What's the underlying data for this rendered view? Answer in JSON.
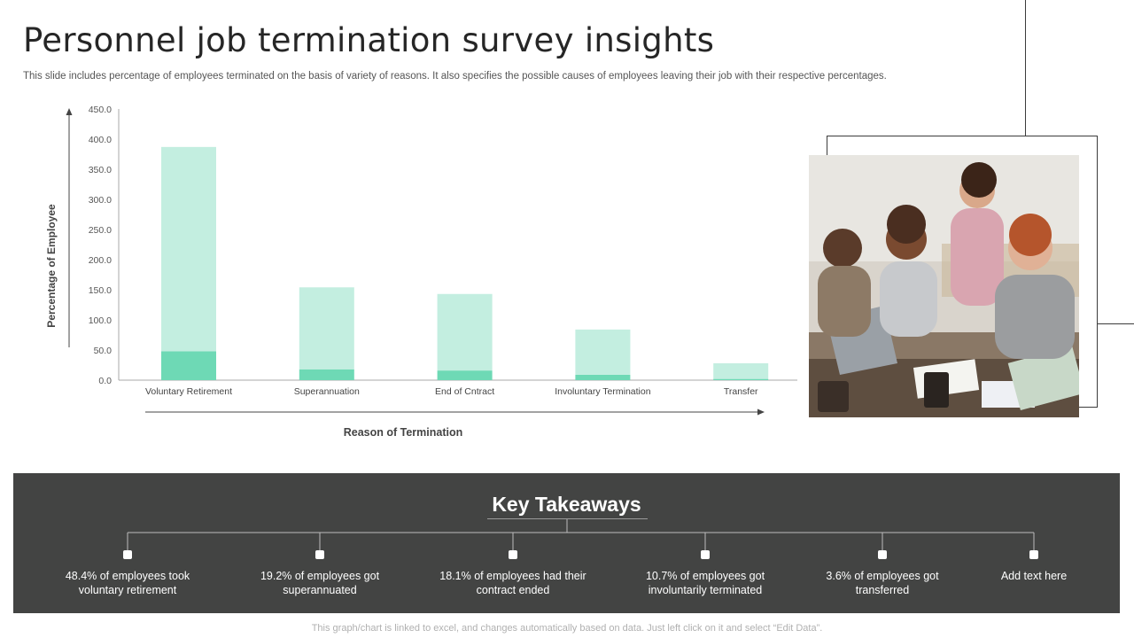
{
  "title": "Personnel job termination survey insights",
  "subtitle": "This slide includes percentage of employees terminated on the basis of variety of reasons. It also specifies the possible causes of employees leaving their job with their respective percentages.",
  "chart_data": {
    "type": "bar",
    "stacked": true,
    "categories": [
      "Voluntary Retirement",
      "Superannuation",
      "End of Cntract",
      "Involuntary Termination",
      "Transfer"
    ],
    "series": [
      {
        "values": [
          48,
          18,
          16,
          9,
          2
        ],
        "color": "#6ed9b5"
      },
      {
        "values": [
          339,
          136,
          127,
          75,
          26
        ],
        "color": "#c3eee0"
      }
    ],
    "ylim": [
      0,
      450
    ],
    "yticks": [
      "0.0",
      "50.0",
      "100.0",
      "150.0",
      "200.0",
      "250.0",
      "300.0",
      "350.0",
      "400.0",
      "450.0"
    ],
    "xlabel": "Reason of Termination",
    "ylabel": "Percentage of Employee",
    "grid": false,
    "legend": "none"
  },
  "takeaways": {
    "title": "Key Takeaways",
    "items": [
      "48.4% of employees took voluntary retirement",
      "19.2% of employees got superannuated",
      "18.1% of employees had their contract ended",
      "10.7% of employees got involuntarily terminated",
      "3.6% of employees got transferred",
      "Add text here"
    ]
  },
  "footer": "This graph/chart is linked to excel, and changes automatically based on data. Just left click on it and select “Edit Data”.",
  "colors": {
    "bar_dark": "#6ed9b5",
    "bar_light": "#c3eee0",
    "panel_bg": "#434443"
  },
  "photo_alt": "team meeting photo"
}
